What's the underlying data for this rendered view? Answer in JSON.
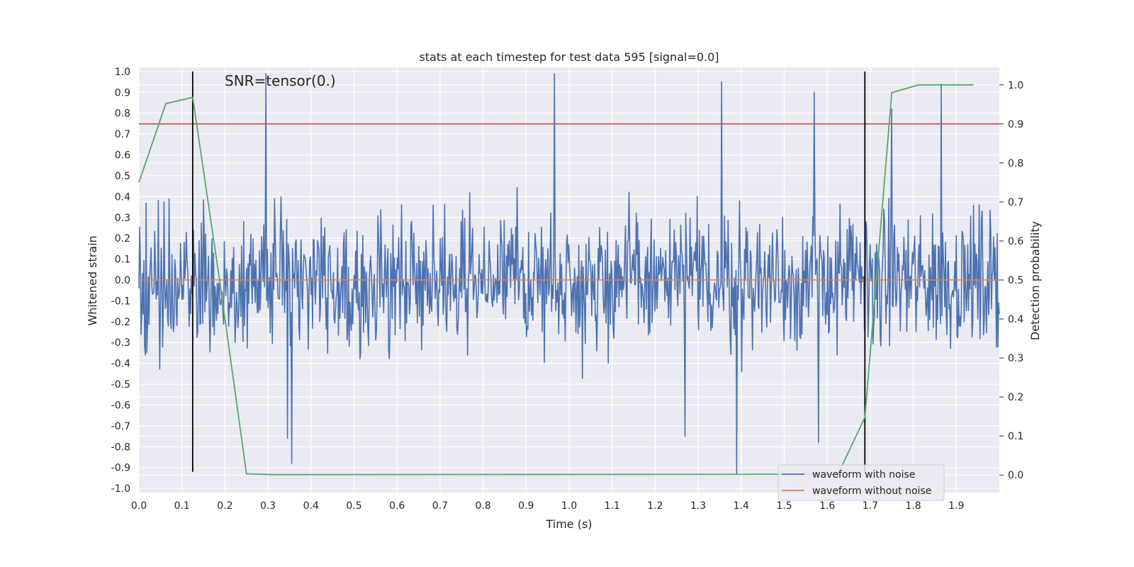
{
  "chart_data": {
    "type": "line",
    "title": "stats at each timestep for test data 595 [signal=0.0]",
    "xlabel": "Time (s)",
    "ylabel": "Whitened strain",
    "y2label": "Detection probability",
    "xlim": [
      0.0,
      2.0
    ],
    "ylim": [
      -1.02,
      1.02
    ],
    "y2lim": [
      -0.045,
      1.045
    ],
    "x_ticks": [
      "0.0",
      "0.1",
      "0.2",
      "0.3",
      "0.4",
      "0.5",
      "0.6",
      "0.7",
      "0.8",
      "0.9",
      "1.0",
      "1.1",
      "1.2",
      "1.3",
      "1.4",
      "1.5",
      "1.6",
      "1.7",
      "1.8",
      "1.9"
    ],
    "y_ticks": [
      "-1.0",
      "-0.9",
      "-0.8",
      "-0.7",
      "-0.6",
      "-0.5",
      "-0.4",
      "-0.3",
      "-0.2",
      "-0.1",
      "0.0",
      "0.1",
      "0.2",
      "0.3",
      "0.4",
      "0.5",
      "0.6",
      "0.7",
      "0.8",
      "0.9",
      "1.0"
    ],
    "y2_ticks": [
      "0.0",
      "0.1",
      "0.2",
      "0.3",
      "0.4",
      "0.5",
      "0.6",
      "0.7",
      "0.8",
      "0.9",
      "1.0"
    ],
    "annotation": "SNR=tensor(0.)",
    "legend": [
      "waveform with noise",
      "waveform without noise"
    ],
    "legend_position": "bottom-right",
    "noise_series": {
      "name": "waveform with noise",
      "color": "#4c72b0",
      "x_start": 0.0,
      "x_end": 2.0,
      "n_points": 1200,
      "approx_range": [
        -0.95,
        0.99
      ],
      "notable_peaks": [
        {
          "x": 0.295,
          "y": 0.99
        },
        {
          "x": 0.965,
          "y": 0.99
        },
        {
          "x": 1.355,
          "y": 0.95
        },
        {
          "x": 1.57,
          "y": 0.9
        },
        {
          "x": 1.75,
          "y": 0.82
        },
        {
          "x": 1.865,
          "y": 0.94
        },
        {
          "x": 1.39,
          "y": -0.93
        },
        {
          "x": 0.355,
          "y": -0.88
        },
        {
          "x": 0.345,
          "y": -0.76
        },
        {
          "x": 1.27,
          "y": -0.75
        },
        {
          "x": 1.58,
          "y": -0.78
        }
      ]
    },
    "clean_series": {
      "name": "waveform without noise",
      "color": "#dd8452",
      "x": [
        0.0,
        2.0
      ],
      "y": [
        0.0,
        0.0
      ]
    },
    "probability_series": {
      "name": "detection probability",
      "color": "#55a868",
      "x": [
        0.0,
        0.0625,
        0.125,
        0.1875,
        0.25,
        0.3125,
        1.625,
        1.6875,
        1.75,
        1.8125,
        1.875,
        1.94
      ],
      "y": [
        0.75,
        0.952,
        0.968,
        0.5,
        0.003,
        0.001,
        0.002,
        0.148,
        0.98,
        1.0,
        1.0,
        1.0
      ]
    },
    "threshold_line": {
      "color": "#c44e52",
      "y2": 0.9
    },
    "event_markers": {
      "color": "#000000",
      "x": [
        0.125,
        1.6875
      ],
      "y_range": [
        -0.92,
        1.0
      ]
    }
  }
}
